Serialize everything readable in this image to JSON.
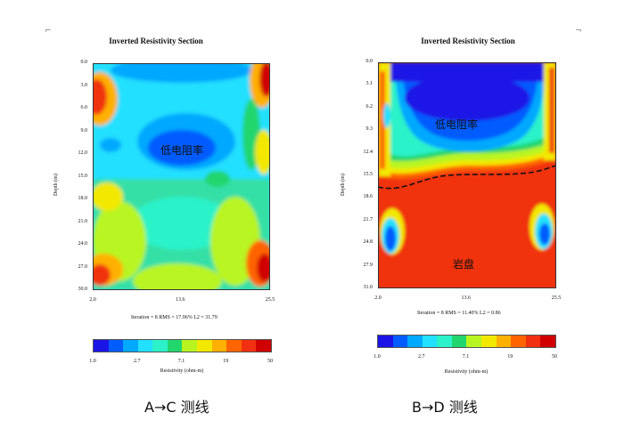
{
  "colorscale": [
    "#1b14e6",
    "#005cff",
    "#00a8ff",
    "#22e0ff",
    "#2cf2c9",
    "#22d66e",
    "#b8f520",
    "#f2e800",
    "#ffb000",
    "#ff6400",
    "#f03010",
    "#d00000"
  ],
  "chart_data": [
    {
      "type": "heatmap",
      "title": "Inverted Resistivity Section",
      "ylabel": "Depth (m)",
      "yticks": [
        "0.0",
        "3.0",
        "6.0",
        "9.0",
        "12.0",
        "15.0",
        "18.0",
        "21.0",
        "24.0",
        "27.0",
        "30.0"
      ],
      "xticks": [
        "2.0",
        "13.6",
        "25.5"
      ],
      "xlim": [
        2.0,
        25.5
      ],
      "ylim": [
        0.0,
        30.0
      ],
      "stats": "Iteration = 8    RMS = 17.96%    L2 = 31.79",
      "annotation": "低电阻率",
      "caption": "A→C  测线"
    },
    {
      "type": "heatmap",
      "title": "Inverted Resistivity Section",
      "ylabel": "Depth (m)",
      "yticks": [
        "0.0",
        "3.1",
        "6.2",
        "9.3",
        "12.4",
        "15.5",
        "18.6",
        "21.7",
        "24.8",
        "27.9",
        "31.0"
      ],
      "xticks": [
        "2.0",
        "13.6",
        "25.5"
      ],
      "xlim": [
        2.0,
        25.5
      ],
      "ylim": [
        0.0,
        31.0
      ],
      "stats": "Iteration = 8    RMS = 11.40%    L2 = 0.86",
      "annotation": "低电阻率",
      "annotation2": "岩盘",
      "caption": "B→D  测线"
    }
  ],
  "colorbar": {
    "ticks": [
      "1.0",
      "2.7",
      "7.1",
      "19",
      "50"
    ],
    "label": "Resistivity (ohm-m)"
  }
}
